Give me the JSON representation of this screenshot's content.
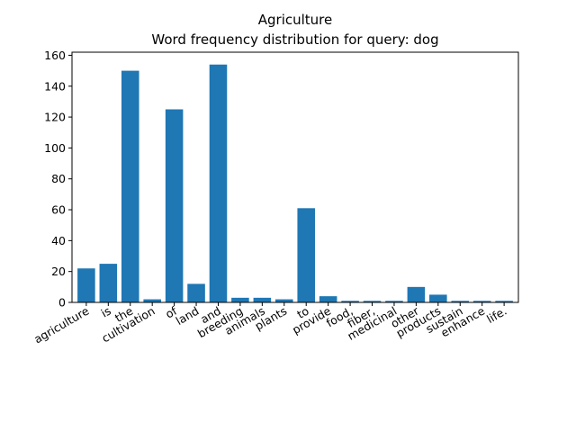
{
  "chart_data": {
    "type": "bar",
    "title": "Agriculture",
    "subtitle": "Word frequency distribution for query: dog",
    "xlabel": "",
    "ylabel": "",
    "categories": [
      "agriculture",
      "is",
      "the",
      "cultivation",
      "of",
      "land",
      "and",
      "breeding",
      "animals",
      "plants",
      "to",
      "provide",
      "food,",
      "fiber,",
      "medicinal",
      "other",
      "products",
      "sustain",
      "enhance",
      "life."
    ],
    "values": [
      22,
      25,
      150,
      2,
      125,
      12,
      154,
      3,
      3,
      2,
      61,
      4,
      1,
      1,
      1,
      10,
      5,
      1,
      1,
      1
    ],
    "ylim": [
      0,
      162
    ],
    "yticks": [
      0,
      20,
      40,
      60,
      80,
      100,
      120,
      140,
      160
    ],
    "bar_color": "#1f77b4",
    "grid": false,
    "legend": "none"
  }
}
